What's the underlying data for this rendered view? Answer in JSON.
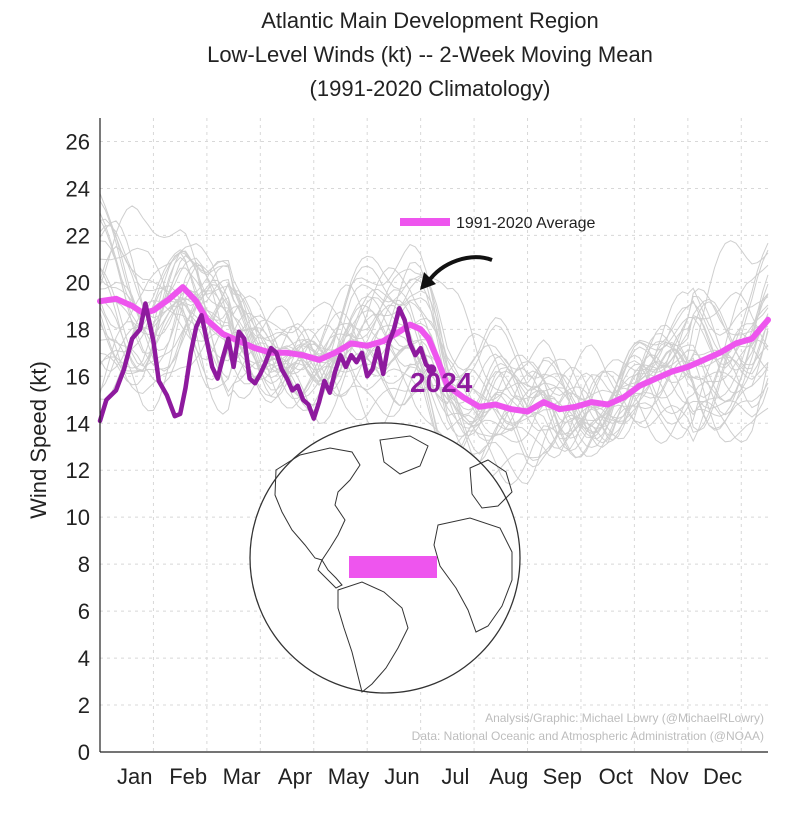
{
  "chart_data": {
    "type": "line",
    "title": [
      "Atlantic Main Development Region",
      "Low-Level Winds (kt) -- 2-Week Moving Mean",
      "(1991-2020 Climatology)"
    ],
    "xlabel": "",
    "ylabel": "Wind Speed (kt)",
    "ylim": [
      0,
      27
    ],
    "xlim": [
      0,
      12.5
    ],
    "yticks": [
      0,
      2,
      4,
      6,
      8,
      10,
      12,
      14,
      16,
      18,
      20,
      22,
      24,
      26
    ],
    "month_labels": [
      "Jan",
      "Feb",
      "Mar",
      "Apr",
      "May",
      "Jun",
      "Jul",
      "Aug",
      "Sep",
      "Oct",
      "Nov",
      "Dec"
    ],
    "grid": true,
    "legend_position": "upper-center",
    "series": [
      {
        "name": "1991-2020 Average",
        "color": "#ee55ee",
        "x": [
          0,
          0.3,
          0.6,
          0.8,
          1.0,
          1.3,
          1.55,
          1.8,
          2.0,
          2.3,
          2.6,
          2.9,
          3.2,
          3.5,
          3.8,
          4.1,
          4.4,
          4.7,
          5.0,
          5.3,
          5.6,
          5.8,
          6.0,
          6.15,
          6.3,
          6.5,
          6.8,
          7.1,
          7.4,
          7.7,
          8.0,
          8.3,
          8.6,
          8.9,
          9.2,
          9.5,
          9.8,
          10.1,
          10.4,
          10.7,
          11.0,
          11.3,
          11.6,
          11.9,
          12.2,
          12.5
        ],
        "y": [
          19.2,
          19.3,
          19.0,
          18.7,
          18.8,
          19.3,
          19.8,
          19.2,
          18.4,
          17.8,
          17.5,
          17.2,
          17.0,
          17.0,
          16.9,
          16.7,
          17.0,
          17.4,
          17.3,
          17.5,
          17.9,
          18.2,
          18.0,
          17.6,
          16.8,
          15.6,
          15.1,
          14.7,
          14.8,
          14.6,
          14.5,
          14.9,
          14.6,
          14.7,
          14.9,
          14.8,
          15.1,
          15.6,
          15.9,
          16.2,
          16.4,
          16.7,
          17.0,
          17.4,
          17.6,
          18.4
        ]
      },
      {
        "name": "2024",
        "color": "#8e1a9e",
        "x": [
          0,
          0.12,
          0.3,
          0.45,
          0.6,
          0.75,
          0.85,
          1.0,
          1.1,
          1.25,
          1.4,
          1.5,
          1.6,
          1.7,
          1.8,
          1.9,
          2.0,
          2.1,
          2.2,
          2.3,
          2.4,
          2.5,
          2.6,
          2.7,
          2.8,
          2.9,
          3.0,
          3.1,
          3.2,
          3.3,
          3.4,
          3.5,
          3.6,
          3.7,
          3.8,
          3.9,
          4.0,
          4.1,
          4.2,
          4.3,
          4.4,
          4.5,
          4.6,
          4.7,
          4.8,
          4.9,
          5.0,
          5.1,
          5.2,
          5.3,
          5.4,
          5.5,
          5.6,
          5.7,
          5.8,
          5.9,
          6.0,
          6.1,
          6.2
        ],
        "y": [
          14.1,
          15.0,
          15.4,
          16.3,
          17.6,
          18.0,
          19.1,
          17.5,
          15.8,
          15.2,
          14.3,
          14.4,
          15.5,
          17.0,
          18.1,
          18.6,
          17.5,
          16.4,
          15.9,
          16.8,
          17.6,
          16.4,
          17.9,
          17.6,
          15.9,
          15.7,
          16.1,
          16.6,
          17.2,
          17.0,
          16.3,
          15.9,
          15.4,
          15.6,
          15.0,
          14.8,
          14.2,
          14.9,
          15.8,
          15.3,
          16.2,
          16.9,
          16.4,
          16.9,
          16.6,
          17.0,
          16.0,
          16.3,
          17.2,
          16.1,
          17.4,
          18.0,
          18.9,
          18.4,
          17.4,
          16.9,
          17.2,
          16.5,
          16.3
        ]
      }
    ],
    "background_years": "1991-2020 individual years (light gray)",
    "annotations": {
      "label_2024": "2024",
      "credit_line1": "Analysis/Graphic: Michael Lowry (@MichaelRLowry)",
      "credit_line2": "Data: National Oceanic and Atmospheric Administration (@NOAA)"
    },
    "inset": "globe",
    "region_color": "#ee55ee"
  }
}
